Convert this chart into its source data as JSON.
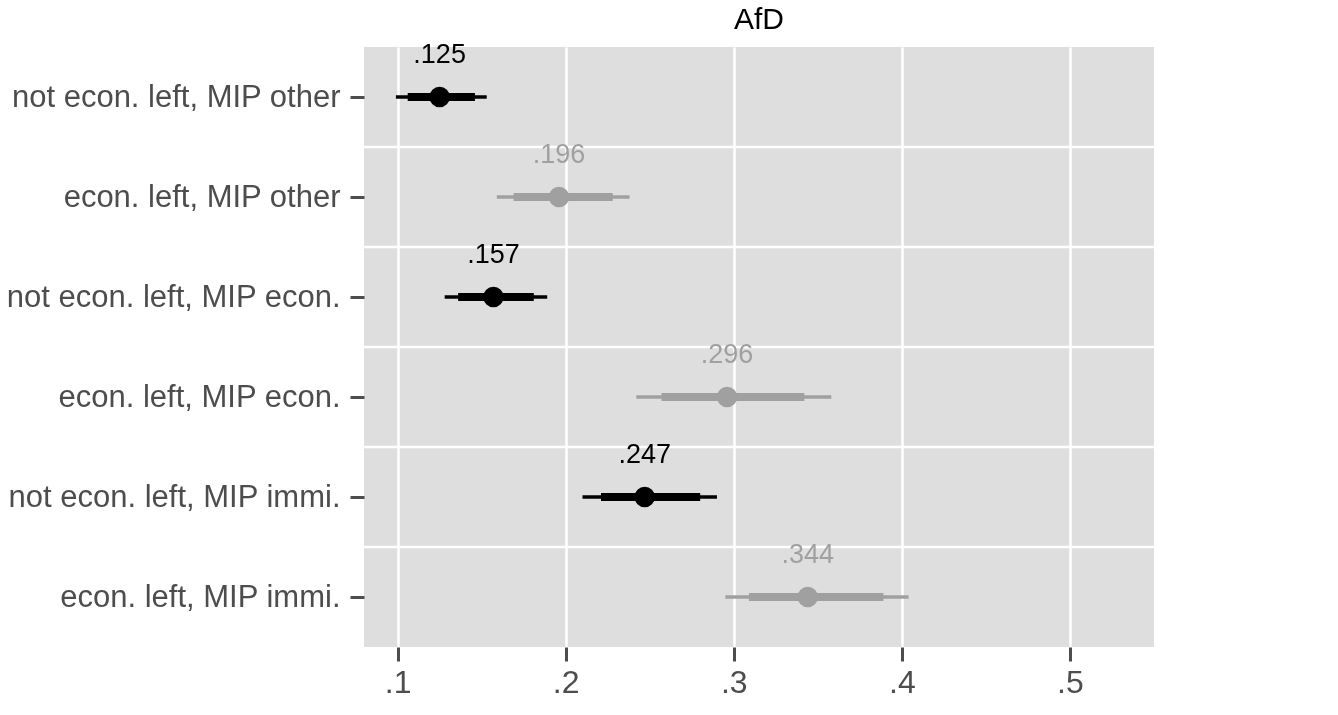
{
  "chart_data": {
    "type": "scatter",
    "title": "AfD",
    "orientation": "horizontal",
    "categories": [
      "not econ. left, MIP other",
      "econ. left, MIP other",
      "not econ. left, MIP econ.",
      "econ. left, MIP econ.",
      "not econ. left, MIP immi.",
      "econ. left, MIP immi."
    ],
    "series": [
      {
        "type": "bar",
        "base": [
          0.106,
          0.169,
          0.136,
          0.257,
          0.221,
          0.309
        ],
        "values": [
          0.04,
          0.059,
          0.045,
          0.085,
          0.059,
          0.08
        ],
        "colors": [
          "#000000",
          "#a0a0a0",
          "#000000",
          "#a0a0a0",
          "#000000",
          "#a0a0a0"
        ]
      },
      {
        "values": [
          0.125,
          0.196,
          0.157,
          0.296,
          0.247,
          0.344
        ],
        "colors": [
          "#000000",
          "#a0a0a0",
          "#000000",
          "#a0a0a0",
          "#000000",
          "#a0a0a0"
        ],
        "errors": [
          [
            0.099,
            0.153
          ],
          [
            0.159,
            0.238
          ],
          [
            0.128,
            0.189
          ],
          [
            0.242,
            0.358
          ],
          [
            0.21,
            0.29
          ],
          [
            0.295,
            0.404
          ]
        ],
        "value_labels": [
          ".125",
          ".196",
          ".157",
          ".296",
          ".247",
          ".344"
        ]
      }
    ],
    "xlim": [
      0.08,
      0.55
    ],
    "xticks": [
      {
        "value": 0.1,
        "label": ".1"
      },
      {
        "value": 0.2,
        "label": ".2"
      },
      {
        "value": 0.3,
        "label": ".3"
      },
      {
        "value": 0.4,
        "label": ".4"
      },
      {
        "value": 0.5,
        "label": ".5"
      }
    ],
    "grid": true,
    "marker": "circle"
  }
}
